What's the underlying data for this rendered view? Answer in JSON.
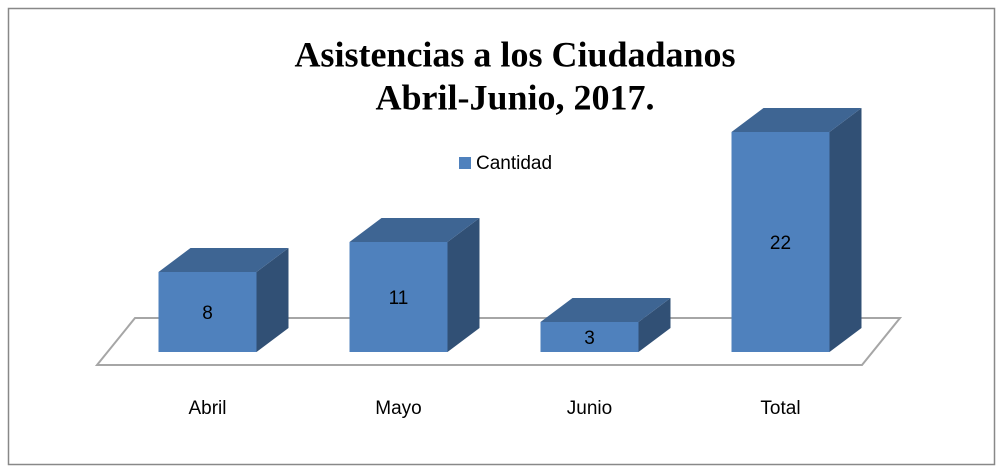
{
  "chart_data": {
    "type": "bar3d",
    "title": "Asistencias a los Ciudadanos",
    "subtitle": "Abril-Junio, 2017.",
    "categories": [
      "Abril",
      "Mayo",
      "Junio",
      "Total"
    ],
    "series": [
      {
        "name": "Cantidad",
        "color": "#4f81bd",
        "values": [
          8,
          11,
          3,
          22
        ]
      }
    ]
  }
}
